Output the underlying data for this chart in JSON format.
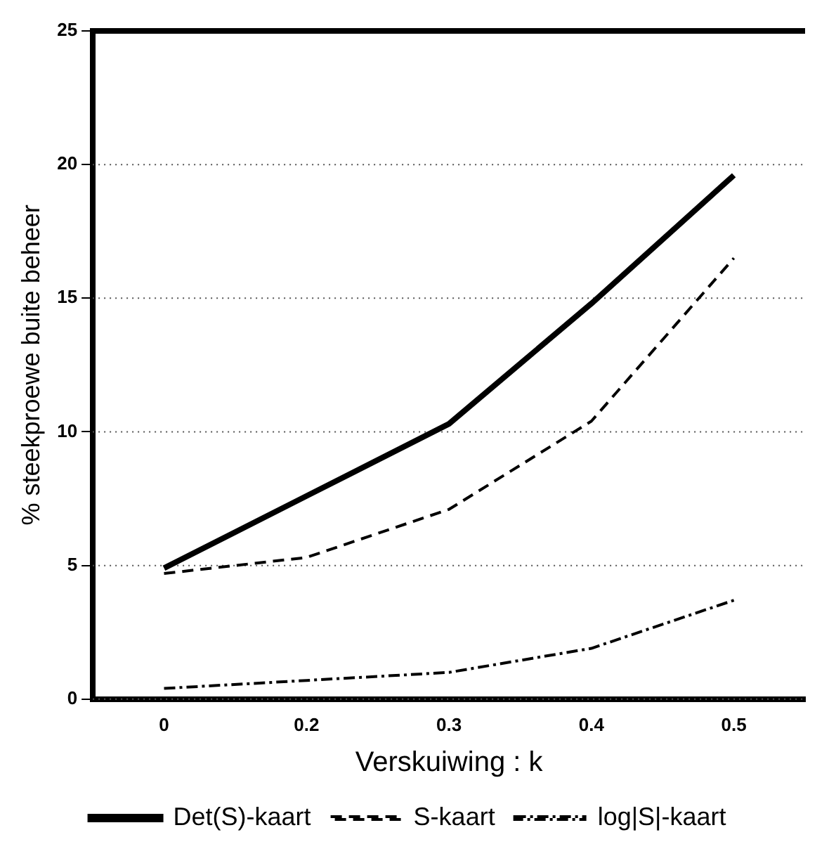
{
  "chart_data": {
    "type": "line",
    "xlabel": "Verskuiwing : k",
    "ylabel": "% steekproewe buite beheer",
    "categories": [
      "0",
      "0.2",
      "0.3",
      "0.4",
      "0.5"
    ],
    "ylim": [
      0,
      25
    ],
    "yticks": [
      0,
      5,
      10,
      15,
      20,
      25
    ],
    "grid": "y",
    "legend": "bottom",
    "marker": "none",
    "series": [
      {
        "name": "Det(S)-kaart",
        "color": "#000000",
        "line_style": "solid",
        "values": [
          4.9,
          7.6,
          10.3,
          14.8,
          19.6
        ]
      },
      {
        "name": "S-kaart",
        "color": "#000000",
        "line_style": "dashed",
        "values": [
          4.7,
          5.3,
          7.1,
          10.4,
          16.5
        ]
      },
      {
        "name": "log|S|-kaart",
        "color": "#000000",
        "line_style": "dotted",
        "values": [
          0.4,
          0.7,
          1.0,
          1.9,
          3.7
        ]
      }
    ]
  }
}
